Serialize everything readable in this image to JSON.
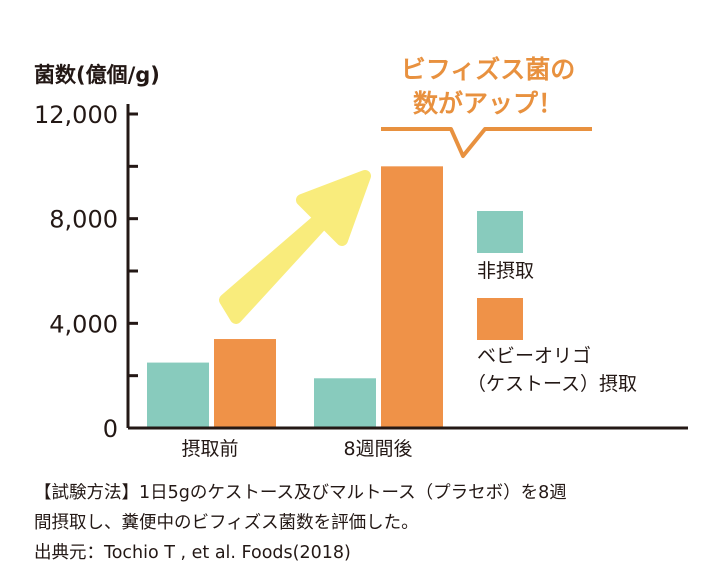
{
  "chart_data": {
    "type": "bar",
    "ylabel": "菌数(億個/g)",
    "categories": [
      "摂取前",
      "8週間後"
    ],
    "series": [
      {
        "name": "非摂取",
        "color": "#88cbbd",
        "values": [
          2500,
          1900
        ]
      },
      {
        "name": "ベビーオリゴ（ケストース）摂取",
        "legend_lines": [
          "ベビーオリゴ",
          "（ケストース）摂取"
        ],
        "color": "#ef9248",
        "values": [
          3400,
          10000
        ]
      }
    ],
    "ylim": [
      0,
      12000
    ],
    "yticks": [
      {
        "value": 0,
        "label": "0"
      },
      {
        "value": 4000,
        "label": "4,000"
      },
      {
        "value": 8000,
        "label": "8,000"
      },
      {
        "value": 12000,
        "label": "12,000"
      }
    ],
    "minor_ticks": [
      2000,
      6000,
      10000
    ],
    "legend_position": "right",
    "annotation": {
      "lines": [
        "ビフィズス菌の",
        "数がアップ！"
      ],
      "color": "#e8913f"
    },
    "arrow_color": "#f9ec7c"
  },
  "footnote": {
    "line1": "【試験方法】1日5gのケストース及びマルトース（プラセボ）を8週",
    "line2": "間摂取し、糞便中のビフィズス菌数を評価した。",
    "line3": "出典元：Tochio T , et al. Foods(2018)"
  }
}
